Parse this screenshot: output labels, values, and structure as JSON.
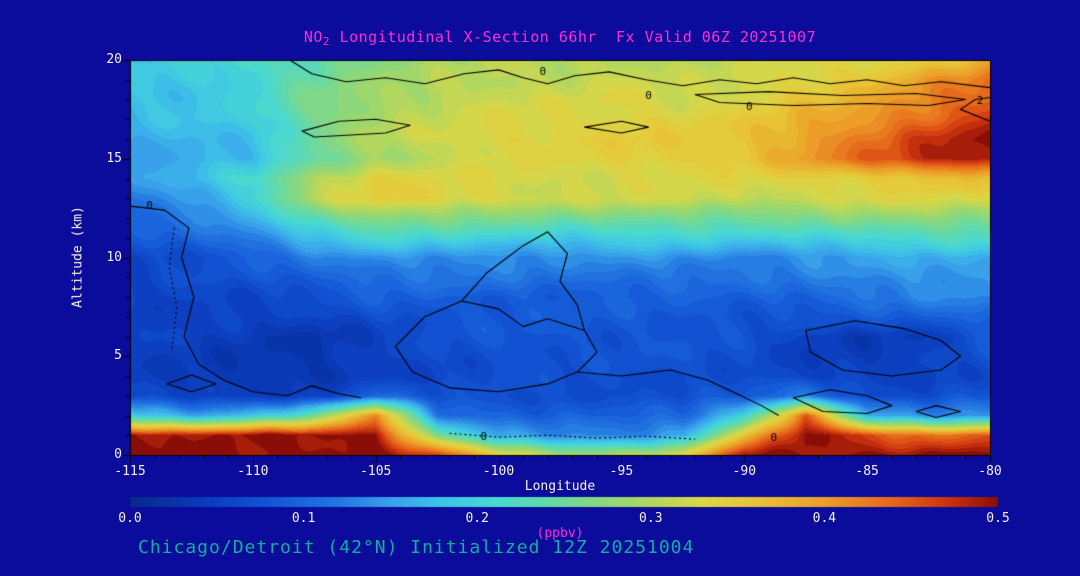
{
  "figure": {
    "bg_color": "#0b0b9c",
    "title": {
      "prefix": "NO",
      "sub": "2",
      "rest": " Longitudinal X-Section 66hr  Fx Valid 06Z 20251007",
      "color": "#fb2fd2"
    },
    "footer": {
      "text": "Chicago/Detroit (42°N) Initialized 12Z 20251004",
      "color": "#12ad9d"
    },
    "axes": {
      "x_label": "Longitude",
      "y_label": "Altitude (km)",
      "tick_color": "#f6f1dd",
      "x_ticks": [
        "-115",
        "-110",
        "-105",
        "-100",
        "-95",
        "-90",
        "-85",
        "-80"
      ],
      "y_ticks": [
        "0",
        "5",
        "10",
        "15",
        "20"
      ]
    },
    "colorbar": {
      "tick_labels": [
        "0.0",
        "0.1",
        "0.2",
        "0.3",
        "0.4",
        "0.5"
      ],
      "units_label": "(ppbv)",
      "units_color": "#fb2fd2"
    }
  },
  "chart_data": {
    "type": "heatmap",
    "title": "NO2 Longitudinal X-Section 66hr Fx Valid 06Z 20251007",
    "xlabel": "Longitude",
    "ylabel": "Altitude (km)",
    "xlim": [
      -115,
      -80
    ],
    "ylim": [
      0,
      20
    ],
    "colorbar_range": {
      "min": 0.0,
      "max": 0.5,
      "units": "ppbv"
    },
    "colormap_stops": [
      [
        0.0,
        "#08288c"
      ],
      [
        0.04,
        "#0a3ab9"
      ],
      [
        0.08,
        "#1254d6"
      ],
      [
        0.12,
        "#2377e1"
      ],
      [
        0.15,
        "#39a0ea"
      ],
      [
        0.18,
        "#3ec4e8"
      ],
      [
        0.21,
        "#49d8d2"
      ],
      [
        0.24,
        "#63d9a8"
      ],
      [
        0.27,
        "#88d87f"
      ],
      [
        0.3,
        "#b2d75e"
      ],
      [
        0.33,
        "#dcd746"
      ],
      [
        0.36,
        "#e7c536"
      ],
      [
        0.4,
        "#ec9e28"
      ],
      [
        0.44,
        "#e6661a"
      ],
      [
        0.47,
        "#ce340e"
      ],
      [
        0.5,
        "#8a0e07"
      ]
    ],
    "lons": [
      -115,
      -112.5,
      -110,
      -107.5,
      -105,
      -102.5,
      -100,
      -97.5,
      -95,
      -92.5,
      -90,
      -87.5,
      -85,
      -82.5,
      -80
    ],
    "altitudes_km": [
      20,
      19,
      18,
      17,
      16,
      15,
      14,
      13,
      12,
      11,
      10,
      8,
      6,
      4,
      3,
      2,
      1,
      0
    ],
    "values": [
      [
        0.18,
        0.19,
        0.21,
        0.24,
        0.27,
        0.29,
        0.3,
        0.3,
        0.31,
        0.3,
        0.31,
        0.32,
        0.33,
        0.35,
        0.38
      ],
      [
        0.18,
        0.19,
        0.21,
        0.25,
        0.28,
        0.3,
        0.31,
        0.31,
        0.32,
        0.31,
        0.32,
        0.34,
        0.36,
        0.4,
        0.43
      ],
      [
        0.18,
        0.18,
        0.2,
        0.26,
        0.29,
        0.31,
        0.32,
        0.32,
        0.33,
        0.32,
        0.33,
        0.36,
        0.38,
        0.42,
        0.45
      ],
      [
        0.17,
        0.18,
        0.19,
        0.26,
        0.3,
        0.31,
        0.33,
        0.33,
        0.34,
        0.34,
        0.35,
        0.38,
        0.41,
        0.44,
        0.47
      ],
      [
        0.16,
        0.17,
        0.18,
        0.25,
        0.3,
        0.32,
        0.34,
        0.34,
        0.35,
        0.35,
        0.36,
        0.4,
        0.43,
        0.47,
        0.5
      ],
      [
        0.15,
        0.16,
        0.17,
        0.24,
        0.29,
        0.31,
        0.33,
        0.33,
        0.34,
        0.35,
        0.36,
        0.4,
        0.44,
        0.48,
        0.5
      ],
      [
        0.14,
        0.17,
        0.22,
        0.3,
        0.34,
        0.33,
        0.33,
        0.32,
        0.33,
        0.33,
        0.33,
        0.34,
        0.35,
        0.37,
        0.36
      ],
      [
        0.12,
        0.15,
        0.2,
        0.3,
        0.35,
        0.34,
        0.33,
        0.32,
        0.32,
        0.32,
        0.31,
        0.32,
        0.33,
        0.33,
        0.32
      ],
      [
        0.1,
        0.12,
        0.16,
        0.24,
        0.28,
        0.27,
        0.26,
        0.25,
        0.26,
        0.26,
        0.25,
        0.26,
        0.27,
        0.28,
        0.27
      ],
      [
        0.08,
        0.1,
        0.13,
        0.18,
        0.21,
        0.2,
        0.2,
        0.19,
        0.2,
        0.2,
        0.19,
        0.2,
        0.21,
        0.22,
        0.22
      ],
      [
        0.06,
        0.07,
        0.09,
        0.12,
        0.14,
        0.14,
        0.14,
        0.13,
        0.14,
        0.14,
        0.13,
        0.14,
        0.15,
        0.16,
        0.16
      ],
      [
        0.05,
        0.06,
        0.06,
        0.07,
        0.09,
        0.09,
        0.09,
        0.09,
        0.09,
        0.09,
        0.09,
        0.1,
        0.12,
        0.13,
        0.13
      ],
      [
        0.05,
        0.05,
        0.04,
        0.03,
        0.05,
        0.07,
        0.08,
        0.08,
        0.08,
        0.08,
        0.07,
        0.05,
        0.04,
        0.05,
        0.08
      ],
      [
        0.05,
        0.04,
        0.03,
        0.03,
        0.05,
        0.06,
        0.07,
        0.07,
        0.07,
        0.07,
        0.07,
        0.05,
        0.05,
        0.05,
        0.07
      ],
      [
        0.06,
        0.05,
        0.05,
        0.05,
        0.1,
        0.07,
        0.07,
        0.07,
        0.07,
        0.07,
        0.08,
        0.12,
        0.07,
        0.07,
        0.08
      ],
      [
        0.2,
        0.16,
        0.18,
        0.24,
        0.42,
        0.12,
        0.1,
        0.09,
        0.09,
        0.1,
        0.2,
        0.45,
        0.16,
        0.13,
        0.14
      ],
      [
        0.5,
        0.48,
        0.5,
        0.5,
        0.5,
        0.26,
        0.15,
        0.13,
        0.13,
        0.16,
        0.36,
        0.5,
        0.46,
        0.43,
        0.46
      ],
      [
        0.5,
        0.5,
        0.5,
        0.5,
        0.5,
        0.46,
        0.36,
        0.3,
        0.3,
        0.33,
        0.5,
        0.5,
        0.5,
        0.5,
        0.5
      ]
    ],
    "contours": [
      {
        "closed": false,
        "dashed": false,
        "pts": [
          [
            -108.5,
            20
          ],
          [
            -107.6,
            19.3
          ],
          [
            -106.2,
            18.9
          ],
          [
            -104.6,
            19.1
          ],
          [
            -103,
            18.8
          ],
          [
            -101.4,
            19.3
          ],
          [
            -100,
            19.5
          ],
          [
            -99,
            19.1
          ],
          [
            -98,
            18.8
          ],
          [
            -96.9,
            19.2
          ],
          [
            -95.5,
            19.4
          ],
          [
            -94,
            19.0
          ],
          [
            -92.5,
            18.7
          ],
          [
            -91,
            19.0
          ],
          [
            -89.5,
            18.8
          ],
          [
            -88,
            19.1
          ],
          [
            -86.5,
            18.8
          ],
          [
            -85,
            19.0
          ],
          [
            -83.5,
            18.7
          ],
          [
            -82,
            18.9
          ],
          [
            -80,
            18.6
          ]
        ]
      },
      {
        "closed": true,
        "dashed": false,
        "pts": [
          [
            -92,
            18.25
          ],
          [
            -89,
            18.4
          ],
          [
            -86,
            18.2
          ],
          [
            -83,
            18.3
          ],
          [
            -81,
            18.0
          ],
          [
            -82.5,
            17.7
          ],
          [
            -85,
            17.8
          ],
          [
            -88,
            17.7
          ],
          [
            -91,
            17.85
          ]
        ]
      },
      {
        "closed": true,
        "dashed": false,
        "pts": [
          [
            -108,
            16.4
          ],
          [
            -106.5,
            16.9
          ],
          [
            -105,
            17.0
          ],
          [
            -103.6,
            16.7
          ],
          [
            -104.6,
            16.3
          ],
          [
            -106,
            16.2
          ],
          [
            -107.5,
            16.1
          ]
        ]
      },
      {
        "closed": true,
        "dashed": false,
        "pts": [
          [
            -96.5,
            16.6
          ],
          [
            -95,
            16.9
          ],
          [
            -93.9,
            16.6
          ],
          [
            -95,
            16.3
          ]
        ]
      },
      {
        "closed": false,
        "dashed": false,
        "pts": [
          [
            -115,
            12.6
          ],
          [
            -113.6,
            12.4
          ],
          [
            -112.6,
            11.5
          ],
          [
            -112.9,
            10
          ],
          [
            -112.4,
            8
          ],
          [
            -112.8,
            6
          ],
          [
            -112.2,
            4.6
          ],
          [
            -111.2,
            3.8
          ],
          [
            -110,
            3.2
          ],
          [
            -108.6,
            3.0
          ],
          [
            -107.6,
            3.5
          ],
          [
            -106.5,
            3.1
          ],
          [
            -105.6,
            2.9
          ]
        ]
      },
      {
        "closed": true,
        "dashed": false,
        "pts": [
          [
            -103,
            7.0
          ],
          [
            -101.5,
            7.8
          ],
          [
            -100,
            7.4
          ],
          [
            -99,
            6.5
          ],
          [
            -98,
            6.9
          ],
          [
            -96.5,
            6.3
          ],
          [
            -96,
            5.2
          ],
          [
            -96.8,
            4.2
          ],
          [
            -98,
            3.6
          ],
          [
            -100,
            3.2
          ],
          [
            -102,
            3.4
          ],
          [
            -103.5,
            4.2
          ],
          [
            -104.2,
            5.5
          ]
        ]
      },
      {
        "closed": false,
        "dashed": false,
        "pts": [
          [
            -101.5,
            7.8
          ],
          [
            -100.5,
            9.2
          ],
          [
            -99,
            10.6
          ],
          [
            -98,
            11.3
          ],
          [
            -97.2,
            10.2
          ],
          [
            -97.5,
            8.8
          ],
          [
            -96.8,
            7.6
          ],
          [
            -96.5,
            6.3
          ]
        ]
      },
      {
        "closed": false,
        "dashed": false,
        "pts": [
          [
            -96.8,
            4.2
          ],
          [
            -95,
            4.0
          ],
          [
            -93,
            4.3
          ],
          [
            -91.5,
            3.8
          ],
          [
            -90.3,
            3.1
          ],
          [
            -89.3,
            2.5
          ],
          [
            -88.6,
            2.0
          ]
        ]
      },
      {
        "closed": true,
        "dashed": false,
        "pts": [
          [
            -87.5,
            6.3
          ],
          [
            -85.5,
            6.8
          ],
          [
            -83.5,
            6.4
          ],
          [
            -82,
            5.8
          ],
          [
            -81.2,
            5.0
          ],
          [
            -82,
            4.3
          ],
          [
            -84,
            4.0
          ],
          [
            -86,
            4.3
          ],
          [
            -87.3,
            5.2
          ]
        ]
      },
      {
        "closed": true,
        "dashed": false,
        "pts": [
          [
            -88,
            2.9
          ],
          [
            -86.5,
            3.3
          ],
          [
            -85,
            3.0
          ],
          [
            -84,
            2.5
          ],
          [
            -85,
            2.1
          ],
          [
            -86.8,
            2.2
          ]
        ]
      },
      {
        "closed": true,
        "dashed": false,
        "pts": [
          [
            -83,
            2.2
          ],
          [
            -82.2,
            2.5
          ],
          [
            -81.2,
            2.2
          ],
          [
            -82.2,
            1.9
          ]
        ]
      },
      {
        "closed": true,
        "dashed": false,
        "pts": [
          [
            -113.5,
            3.6
          ],
          [
            -112.5,
            4.05
          ],
          [
            -111.5,
            3.6
          ],
          [
            -112.5,
            3.2
          ]
        ]
      },
      {
        "closed": false,
        "dashed": false,
        "pts": [
          [
            -80,
            16.9
          ],
          [
            -81.2,
            17.5
          ],
          [
            -80.6,
            18.0
          ],
          [
            -80,
            18.1
          ]
        ]
      },
      {
        "closed": false,
        "dashed": true,
        "pts": [
          [
            -113.2,
            11.5
          ],
          [
            -113.4,
            9.5
          ],
          [
            -113.1,
            7.5
          ],
          [
            -113.3,
            5.2
          ]
        ]
      },
      {
        "closed": false,
        "dashed": true,
        "pts": [
          [
            -102,
            1.1
          ],
          [
            -100,
            0.9
          ],
          [
            -98,
            1.0
          ],
          [
            -96,
            0.85
          ],
          [
            -94,
            0.95
          ],
          [
            -92,
            0.8
          ]
        ]
      }
    ],
    "contour_labels": [
      {
        "text": "0",
        "lon": -114.2,
        "alt": 12.6
      },
      {
        "text": "0",
        "lon": -98.2,
        "alt": 19.4
      },
      {
        "text": "0",
        "lon": -93.9,
        "alt": 18.15
      },
      {
        "text": "0",
        "lon": -89.8,
        "alt": 17.6
      },
      {
        "text": "2",
        "lon": -80.4,
        "alt": 17.9
      },
      {
        "text": "0",
        "lon": -100.6,
        "alt": 0.9
      },
      {
        "text": "0",
        "lon": -88.8,
        "alt": 0.85
      }
    ]
  }
}
